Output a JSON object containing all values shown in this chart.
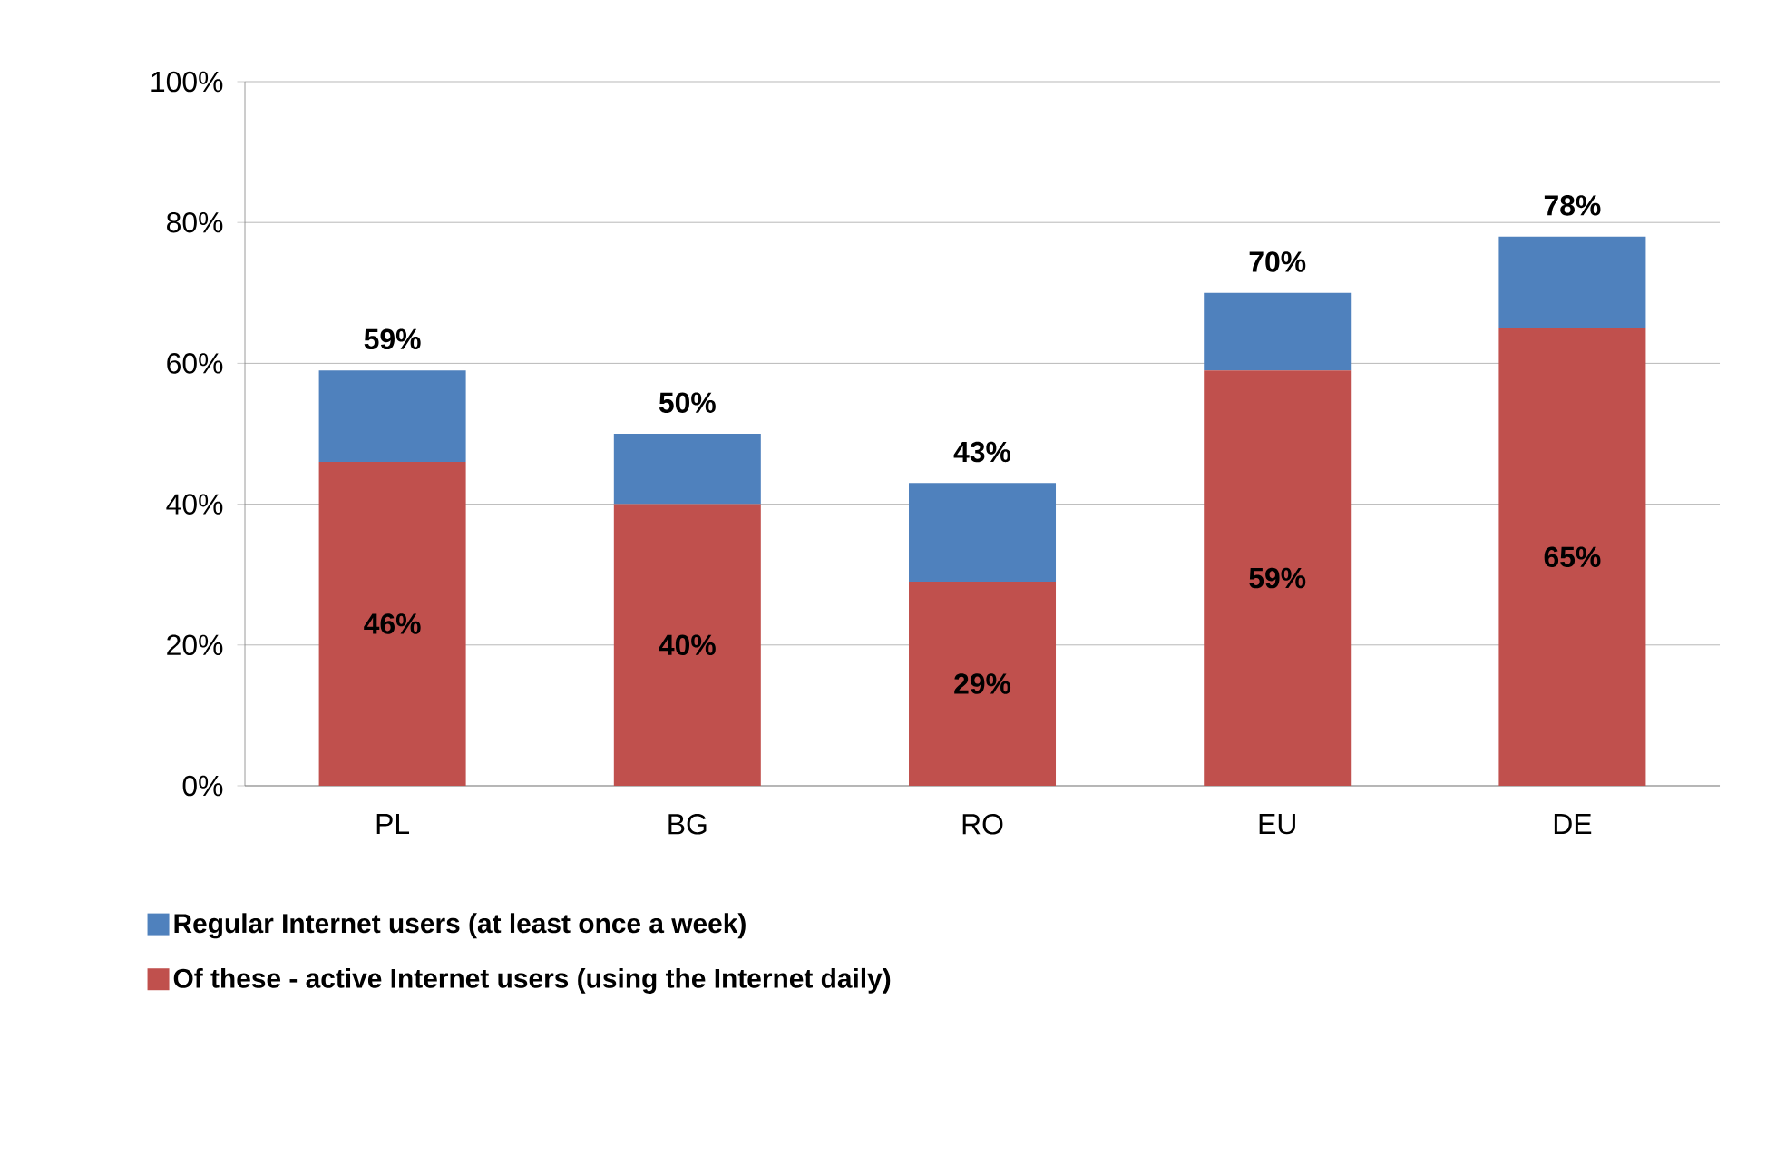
{
  "chart_data": {
    "type": "bar",
    "stacked": true,
    "categories": [
      "PL",
      "BG",
      "RO",
      "EU",
      "DE"
    ],
    "series": [
      {
        "name": "Of these - active Internet users (using the Internet daily)",
        "color": "#c0504d",
        "values": [
          46,
          40,
          29,
          59,
          65
        ],
        "value_labels": [
          "46%",
          "40%",
          "29%",
          "59%",
          "65%"
        ]
      },
      {
        "name": "Regular Internet users (at least once a week)",
        "color": "#4f81bd",
        "values": [
          13,
          10,
          14,
          11,
          13
        ]
      }
    ],
    "totals": [
      "59%",
      "50%",
      "43%",
      "70%",
      "78%"
    ],
    "ylim": [
      0,
      100
    ],
    "yticks": [
      {
        "value": 0,
        "label": "0%"
      },
      {
        "value": 20,
        "label": "20%"
      },
      {
        "value": 40,
        "label": "40%"
      },
      {
        "value": 60,
        "label": "60%"
      },
      {
        "value": 80,
        "label": "80%"
      },
      {
        "value": 100,
        "label": "100%"
      }
    ],
    "grid": "y",
    "legend": "bottom"
  }
}
